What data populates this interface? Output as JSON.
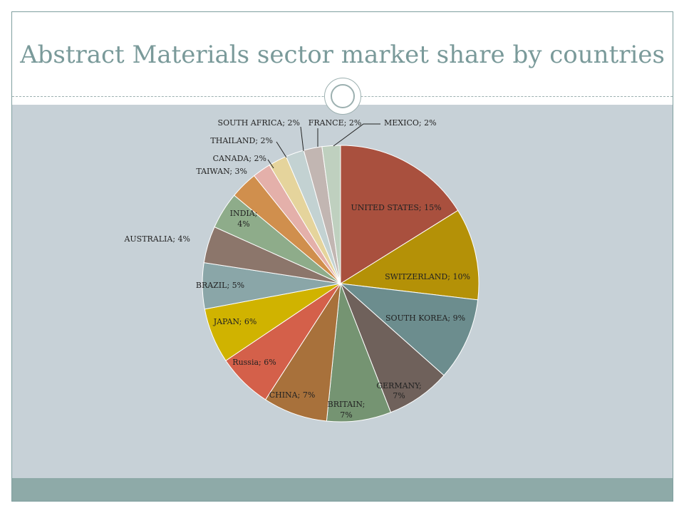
{
  "slide": {
    "title": "Abstract Materials sector market share by countries"
  },
  "chart_data": {
    "type": "pie",
    "title": "",
    "slices": [
      {
        "label": "UNITED STATES",
        "value": 15,
        "text": "UNITED STATES; 15%",
        "color": "#a9503e"
      },
      {
        "label": "SWITZERLAND",
        "value": 10,
        "text": "SWITZERLAND; 10%",
        "color": "#b49107"
      },
      {
        "label": "SOUTH KOREA",
        "value": 9,
        "text": "SOUTH KOREA; 9%",
        "color": "#6c8d8e"
      },
      {
        "label": "GERMANY",
        "value": 7,
        "text": "GERMANY; 7%",
        "color": "#6f615b"
      },
      {
        "label": "BRITAIN",
        "value": 7,
        "text": "BRITAIN; 7%",
        "color": "#759472"
      },
      {
        "label": "CHINA",
        "value": 7,
        "text": "CHINA; 7%",
        "color": "#a8713b"
      },
      {
        "label": "Russia",
        "value": 6,
        "text": "Russia; 6%",
        "color": "#d4604a"
      },
      {
        "label": "JAPAN",
        "value": 6,
        "text": "JAPAN; 6%",
        "color": "#d0b300"
      },
      {
        "label": "BRAZIL",
        "value": 5,
        "text": "BRAZIL; 5%",
        "color": "#8aa6a8"
      },
      {
        "label": "AUSTRALIA",
        "value": 4,
        "text": "AUSTRALIA; 4%",
        "color": "#8c766b"
      },
      {
        "label": "INDIA",
        "value": 4,
        "text": "INDIA; 4%",
        "color": "#8eac8a"
      },
      {
        "label": "TAIWAN",
        "value": 3,
        "text": "TAIWAN; 3%",
        "color": "#d08f4d"
      },
      {
        "label": "CANADA",
        "value": 2,
        "text": "CANADA; 2%",
        "color": "#e4b0aa"
      },
      {
        "label": "THAILAND",
        "value": 2,
        "text": "THAILAND; 2%",
        "color": "#e5d49c"
      },
      {
        "label": "SOUTH AFRICA",
        "value": 2,
        "text": "SOUTH AFRICA; 2%",
        "color": "#c3d2d2"
      },
      {
        "label": "FRANCE",
        "value": 2,
        "text": "FRANCE; 2%",
        "color": "#c2b6b2"
      },
      {
        "label": "MEXICO",
        "value": 2,
        "text": "MEXICO; 2%",
        "color": "#bfd0bf"
      }
    ]
  }
}
